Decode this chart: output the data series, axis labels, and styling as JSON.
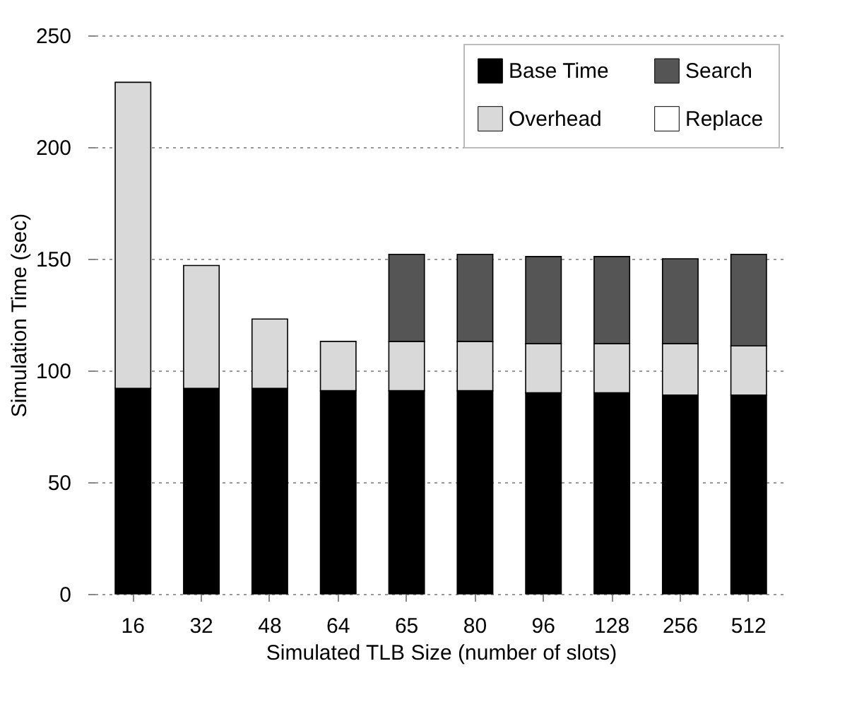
{
  "chart_data": {
    "type": "bar",
    "stacked": true,
    "xlabel": "Simulated TLB Size (number of slots)",
    "ylabel": "Simulation Time (sec)",
    "categories": [
      "16",
      "32",
      "48",
      "64",
      "65",
      "80",
      "96",
      "128",
      "256",
      "512"
    ],
    "series": [
      {
        "name": "Base Time",
        "color": "#000000",
        "values": [
          92,
          92,
          92,
          91,
          91,
          91,
          90,
          90,
          89,
          89
        ]
      },
      {
        "name": "Overhead",
        "color": "#d9d9d9",
        "values": [
          137,
          55,
          31,
          22,
          22,
          22,
          22,
          22,
          23,
          22
        ]
      },
      {
        "name": "Search",
        "color": "#555555",
        "values": [
          null,
          null,
          null,
          null,
          39,
          39,
          39,
          39,
          38,
          41
        ]
      },
      {
        "name": "Replace",
        "color": "#ffffff",
        "values": [
          null,
          null,
          null,
          null,
          null,
          null,
          null,
          null,
          null,
          null
        ]
      }
    ],
    "ylim": [
      0,
      250
    ],
    "yticks": [
      0,
      50,
      100,
      150,
      200,
      250
    ],
    "grid": "y",
    "legend": "top right"
  }
}
